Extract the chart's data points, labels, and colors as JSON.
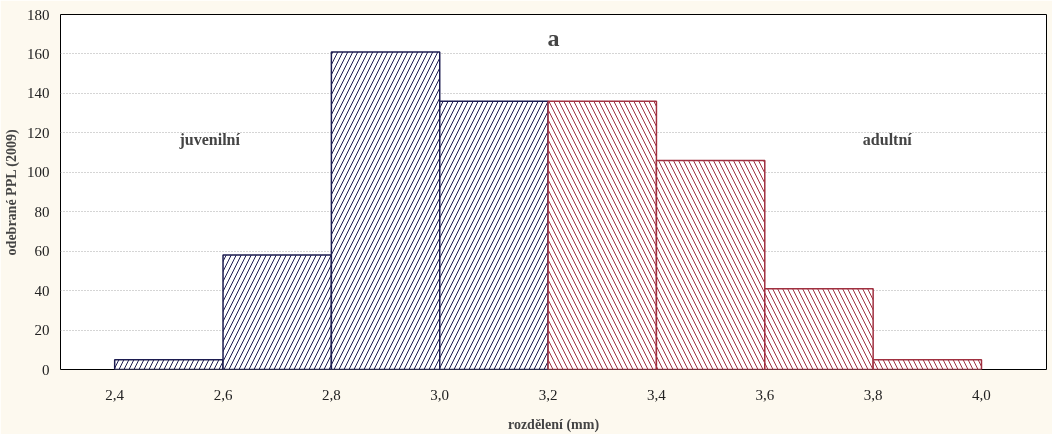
{
  "chart_data": {
    "type": "histogram",
    "title": "a",
    "xlabel": "rozdělení (mm)",
    "ylabel": "odebrané PPL (2009)",
    "bins": [
      2.4,
      2.6,
      2.8,
      3.0,
      3.2,
      3.4,
      3.6,
      3.8,
      4.0
    ],
    "values": [
      5,
      58,
      161,
      136,
      136,
      106,
      41,
      5
    ],
    "colors": [
      "#1c1c50",
      "#1c1c50",
      "#1c1c50",
      "#1c1c50",
      "#a03040",
      "#a03040",
      "#a03040",
      "#a03040"
    ],
    "xlim": [
      2.3,
      4.12
    ],
    "xticks": [
      {
        "value": 2.4,
        "label": "2,4"
      },
      {
        "value": 2.6,
        "label": "2,6"
      },
      {
        "value": 2.8,
        "label": "2,8"
      },
      {
        "value": 3.0,
        "label": "3,0"
      },
      {
        "value": 3.2,
        "label": "3,2"
      },
      {
        "value": 3.4,
        "label": "3,4"
      },
      {
        "value": 3.6,
        "label": "3,6"
      },
      {
        "value": 3.8,
        "label": "3,8"
      },
      {
        "value": 4.0,
        "label": "4,0"
      }
    ],
    "ylim": [
      0,
      180
    ],
    "yticks": [
      0,
      20,
      40,
      60,
      80,
      100,
      120,
      140,
      160,
      180
    ],
    "grid": "y",
    "annotations": [
      "juvenilní",
      "adultní"
    ]
  }
}
